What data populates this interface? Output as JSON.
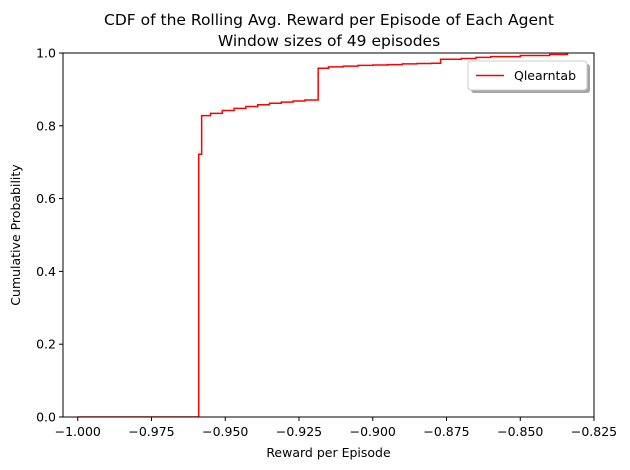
{
  "chart_data": {
    "type": "line",
    "title": "CDF of the Rolling Avg. Reward per Episode of Each Agent",
    "subtitle": "Window sizes of 49 episodes",
    "xlabel": "Reward per Episode",
    "ylabel": "Cumulative Probability",
    "xlim": [
      -1.005,
      -0.825
    ],
    "ylim": [
      0.0,
      1.0
    ],
    "xticks": [
      -1.0,
      -0.975,
      -0.95,
      -0.925,
      -0.9,
      -0.875,
      -0.85,
      -0.825
    ],
    "xtick_labels": [
      "−1.000",
      "−0.975",
      "−0.950",
      "−0.925",
      "−0.900",
      "−0.875",
      "−0.850",
      "−0.825"
    ],
    "yticks": [
      0.0,
      0.2,
      0.4,
      0.6,
      0.8,
      1.0
    ],
    "ytick_labels": [
      "0.0",
      "0.2",
      "0.4",
      "0.6",
      "0.8",
      "1.0"
    ],
    "grid": false,
    "legend_position": "top-right",
    "series": [
      {
        "name": "Qlearntab",
        "color": "#ff0000",
        "step": "post",
        "x": [
          -1.0,
          -0.959,
          -0.958,
          -0.955,
          -0.951,
          -0.947,
          -0.943,
          -0.939,
          -0.935,
          -0.931,
          -0.927,
          -0.923,
          -0.9185,
          -0.9185,
          -0.915,
          -0.91,
          -0.905,
          -0.9,
          -0.895,
          -0.89,
          -0.885,
          -0.88,
          -0.877,
          -0.87,
          -0.865,
          -0.86,
          -0.85,
          -0.84,
          -0.834
        ],
        "y": [
          0.0,
          0.722,
          0.828,
          0.834,
          0.842,
          0.848,
          0.853,
          0.858,
          0.862,
          0.865,
          0.868,
          0.871,
          0.876,
          0.958,
          0.962,
          0.964,
          0.966,
          0.967,
          0.968,
          0.97,
          0.971,
          0.972,
          0.983,
          0.985,
          0.988,
          0.99,
          0.993,
          0.996,
          1.0
        ]
      }
    ]
  }
}
